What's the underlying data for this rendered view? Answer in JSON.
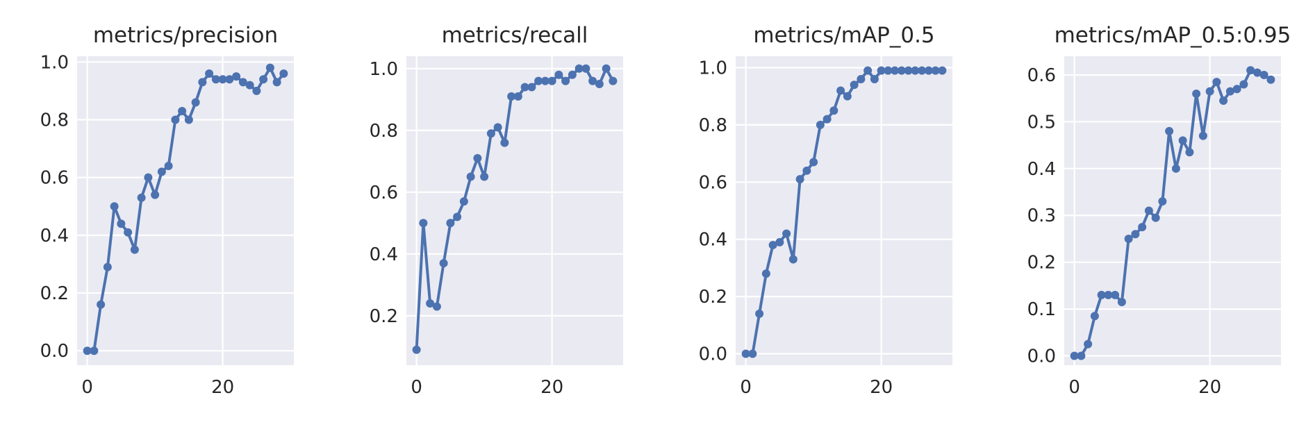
{
  "chart_data": [
    {
      "type": "line",
      "title": "metrics/precision",
      "xlabel": "",
      "ylabel": "",
      "xlim": [
        -1.5,
        30.5
      ],
      "ylim": [
        -0.05,
        1.02
      ],
      "xticks": [
        0,
        20
      ],
      "xtick_labels": [
        "0",
        "20"
      ],
      "yticks": [
        0.0,
        0.2,
        0.4,
        0.6,
        0.8,
        1.0
      ],
      "ytick_labels": [
        "0.0",
        "0.2",
        "0.4",
        "0.6",
        "0.8",
        "1.0"
      ],
      "grid": true,
      "x": [
        0,
        1,
        2,
        3,
        4,
        5,
        6,
        7,
        8,
        9,
        10,
        11,
        12,
        13,
        14,
        15,
        16,
        17,
        18,
        19,
        20,
        21,
        22,
        23,
        24,
        25,
        26,
        27,
        28,
        29
      ],
      "y": [
        0.0,
        0.0,
        0.16,
        0.29,
        0.5,
        0.44,
        0.41,
        0.35,
        0.53,
        0.6,
        0.54,
        0.62,
        0.64,
        0.8,
        0.83,
        0.8,
        0.86,
        0.93,
        0.96,
        0.94,
        0.94,
        0.94,
        0.95,
        0.93,
        0.92,
        0.9,
        0.94,
        0.98,
        0.93,
        0.96
      ]
    },
    {
      "type": "line",
      "title": "metrics/recall",
      "xlabel": "",
      "ylabel": "",
      "xlim": [
        -1.5,
        30.5
      ],
      "ylim": [
        0.04,
        1.04
      ],
      "xticks": [
        0,
        20
      ],
      "xtick_labels": [
        "0",
        "20"
      ],
      "yticks": [
        0.2,
        0.4,
        0.6,
        0.8,
        1.0
      ],
      "ytick_labels": [
        "0.2",
        "0.4",
        "0.6",
        "0.8",
        "1.0"
      ],
      "grid": true,
      "x": [
        0,
        1,
        2,
        3,
        4,
        5,
        6,
        7,
        8,
        9,
        10,
        11,
        12,
        13,
        14,
        15,
        16,
        17,
        18,
        19,
        20,
        21,
        22,
        23,
        24,
        25,
        26,
        27,
        28,
        29
      ],
      "y": [
        0.09,
        0.5,
        0.24,
        0.23,
        0.37,
        0.5,
        0.52,
        0.57,
        0.65,
        0.71,
        0.65,
        0.79,
        0.81,
        0.76,
        0.91,
        0.91,
        0.94,
        0.94,
        0.96,
        0.96,
        0.96,
        0.98,
        0.96,
        0.98,
        1.0,
        1.0,
        0.96,
        0.95,
        1.0,
        0.96
      ]
    },
    {
      "type": "line",
      "title": "metrics/mAP_0.5",
      "xlabel": "",
      "ylabel": "",
      "xlim": [
        -1.5,
        30.5
      ],
      "ylim": [
        -0.04,
        1.04
      ],
      "xticks": [
        0,
        20
      ],
      "xtick_labels": [
        "0",
        "20"
      ],
      "yticks": [
        0.0,
        0.2,
        0.4,
        0.6,
        0.8,
        1.0
      ],
      "ytick_labels": [
        "0.0",
        "0.2",
        "0.4",
        "0.6",
        "0.8",
        "1.0"
      ],
      "grid": true,
      "x": [
        0,
        1,
        2,
        3,
        4,
        5,
        6,
        7,
        8,
        9,
        10,
        11,
        12,
        13,
        14,
        15,
        16,
        17,
        18,
        19,
        20,
        21,
        22,
        23,
        24,
        25,
        26,
        27,
        28,
        29
      ],
      "y": [
        0.0,
        0.0,
        0.14,
        0.28,
        0.38,
        0.39,
        0.42,
        0.33,
        0.61,
        0.64,
        0.67,
        0.8,
        0.82,
        0.85,
        0.92,
        0.9,
        0.94,
        0.96,
        0.99,
        0.96,
        0.99,
        0.99,
        0.99,
        0.99,
        0.99,
        0.99,
        0.99,
        0.99,
        0.99,
        0.99
      ]
    },
    {
      "type": "line",
      "title": "metrics/mAP_0.5:0.95",
      "xlabel": "",
      "ylabel": "",
      "xlim": [
        -1.5,
        30.5
      ],
      "ylim": [
        -0.02,
        0.64
      ],
      "xticks": [
        0,
        20
      ],
      "xtick_labels": [
        "0",
        "20"
      ],
      "yticks": [
        0.0,
        0.1,
        0.2,
        0.3,
        0.4,
        0.5,
        0.6
      ],
      "ytick_labels": [
        "0.0",
        "0.1",
        "0.2",
        "0.3",
        "0.4",
        "0.5",
        "0.6"
      ],
      "grid": true,
      "x": [
        0,
        1,
        2,
        3,
        4,
        5,
        6,
        7,
        8,
        9,
        10,
        11,
        12,
        13,
        14,
        15,
        16,
        17,
        18,
        19,
        20,
        21,
        22,
        23,
        24,
        25,
        26,
        27,
        28,
        29
      ],
      "y": [
        0.0,
        0.0,
        0.025,
        0.085,
        0.13,
        0.13,
        0.13,
        0.115,
        0.25,
        0.26,
        0.275,
        0.31,
        0.295,
        0.33,
        0.48,
        0.4,
        0.46,
        0.435,
        0.56,
        0.47,
        0.565,
        0.585,
        0.545,
        0.565,
        0.57,
        0.58,
        0.61,
        0.605,
        0.6,
        0.59
      ]
    }
  ],
  "colors": {
    "background": "#ffffff",
    "plot_area": "#eaeaf2",
    "grid": "#ffffff",
    "line": "#4c72b0",
    "text": "#262626"
  }
}
